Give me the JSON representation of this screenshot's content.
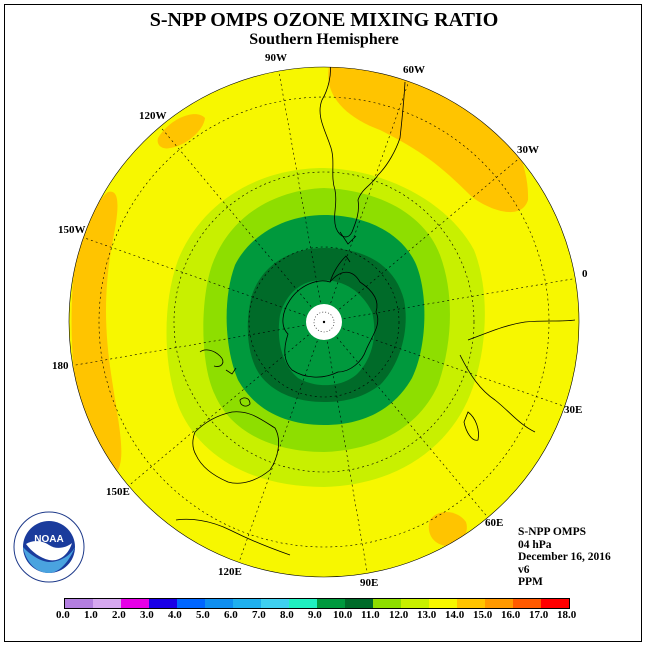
{
  "title": "S-NPP OMPS OZONE MIXING RATIO",
  "subtitle": "Southern Hemisphere",
  "longitude_labels": [
    "90W",
    "60W",
    "30W",
    "0",
    "30E",
    "60E",
    "90E",
    "120E",
    "150E",
    "180",
    "150W",
    "120W"
  ],
  "info": {
    "instrument": "S-NPP OMPS",
    "pressure": "04 hPa",
    "date": "December 16, 2016",
    "version": "v6",
    "units": "PPM"
  },
  "logo_text": "NOAA",
  "colorbar": {
    "labels": [
      "0.0",
      "1.0",
      "2.0",
      "3.0",
      "4.0",
      "5.0",
      "6.0",
      "7.0",
      "8.0",
      "9.0",
      "10.0",
      "11.0",
      "12.0",
      "13.0",
      "14.0",
      "15.0",
      "16.0",
      "17.0",
      "18.0"
    ],
    "colors": [
      "#b37fe0",
      "#d6a8f0",
      "#e600e6",
      "#1a00e6",
      "#0066ff",
      "#0f8ff0",
      "#1fb0ee",
      "#3fd0f0",
      "#20f0c0",
      "#00993d",
      "#006b29",
      "#8ede00",
      "#c8f000",
      "#f7f700",
      "#ffc400",
      "#ff9900",
      "#ff5a00",
      "#ff0000",
      "#8b5a3c"
    ]
  },
  "colors": {
    "outer_field": "#f7f700",
    "orange": "#ffc400",
    "light_green": "#c8f000",
    "yellow_green": "#8ede00",
    "green": "#00993d",
    "dark_green": "#006b29",
    "pole": "#ffffff"
  }
}
